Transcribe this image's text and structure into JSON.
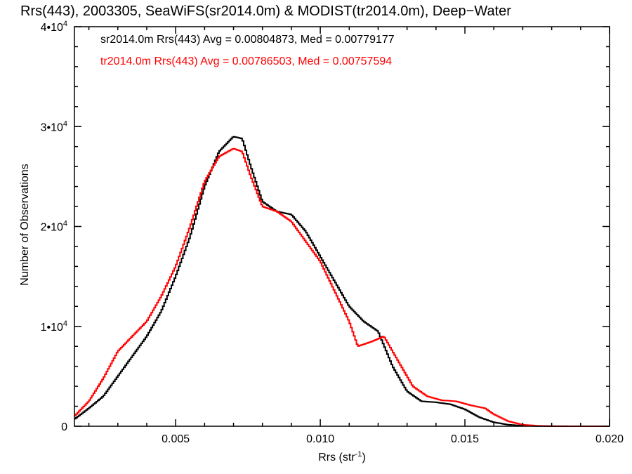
{
  "chart_data": {
    "type": "line",
    "title": "Rrs(443), 2003305, SeaWiFS(sr2014.0m) & MODIST(tr2014.0m), Deep−Water",
    "xlabel": "Rrs (str",
    "xlabel_sup": "-1",
    "xlabel_suffix": ")",
    "ylabel": "Number of Observations",
    "xlim": [
      0.0015,
      0.02
    ],
    "ylim": [
      0,
      40000
    ],
    "x_ticks": [
      {
        "value": 0.005,
        "label": "0.005"
      },
      {
        "value": 0.01,
        "label": "0.010"
      },
      {
        "value": 0.015,
        "label": "0.015"
      },
      {
        "value": 0.02,
        "label": "0.020"
      }
    ],
    "y_ticks": [
      {
        "value": 0,
        "label": "0",
        "sup": ""
      },
      {
        "value": 10000,
        "label": "1•10",
        "sup": "4"
      },
      {
        "value": 20000,
        "label": "2•10",
        "sup": "4"
      },
      {
        "value": 30000,
        "label": "3•10",
        "sup": "4"
      },
      {
        "value": 40000,
        "label": "4•10",
        "sup": "4"
      }
    ],
    "grid": false,
    "annotations": [
      {
        "text": "sr2014.0m Rrs(443) Avg = 0.00804873, Med = 0.00779177",
        "color": "#000000"
      },
      {
        "text": "tr2014.0m Rrs(443) Avg = 0.00786503, Med = 0.00757594",
        "color": "#ff0000"
      }
    ],
    "series": [
      {
        "color": "#000000",
        "points": [
          [
            0.0015,
            700
          ],
          [
            0.002,
            1800
          ],
          [
            0.0025,
            3000
          ],
          [
            0.003,
            5000
          ],
          [
            0.0035,
            7000
          ],
          [
            0.004,
            9000
          ],
          [
            0.0045,
            11500
          ],
          [
            0.005,
            15000
          ],
          [
            0.0055,
            19000
          ],
          [
            0.006,
            24000
          ],
          [
            0.0065,
            27500
          ],
          [
            0.007,
            29000
          ],
          [
            0.0073,
            28800
          ],
          [
            0.0076,
            26000
          ],
          [
            0.008,
            22500
          ],
          [
            0.0085,
            21500
          ],
          [
            0.009,
            21200
          ],
          [
            0.0095,
            19500
          ],
          [
            0.01,
            17000
          ],
          [
            0.0105,
            14500
          ],
          [
            0.011,
            12000
          ],
          [
            0.0115,
            10500
          ],
          [
            0.012,
            9500
          ],
          [
            0.0125,
            6000
          ],
          [
            0.013,
            3500
          ],
          [
            0.0135,
            2500
          ],
          [
            0.014,
            2400
          ],
          [
            0.0145,
            2200
          ],
          [
            0.015,
            1700
          ],
          [
            0.0155,
            900
          ],
          [
            0.016,
            400
          ],
          [
            0.0165,
            150
          ],
          [
            0.017,
            60
          ],
          [
            0.0175,
            20
          ],
          [
            0.018,
            5
          ],
          [
            0.019,
            0
          ],
          [
            0.02,
            0
          ]
        ]
      },
      {
        "color": "#ff0000",
        "points": [
          [
            0.0015,
            1000
          ],
          [
            0.002,
            2500
          ],
          [
            0.0025,
            4800
          ],
          [
            0.003,
            7500
          ],
          [
            0.0035,
            9000
          ],
          [
            0.004,
            10500
          ],
          [
            0.0045,
            13000
          ],
          [
            0.005,
            16000
          ],
          [
            0.0055,
            20000
          ],
          [
            0.006,
            24500
          ],
          [
            0.0065,
            27000
          ],
          [
            0.007,
            27800
          ],
          [
            0.0073,
            27500
          ],
          [
            0.0076,
            25000
          ],
          [
            0.008,
            22000
          ],
          [
            0.0085,
            21500
          ],
          [
            0.009,
            20500
          ],
          [
            0.0095,
            18500
          ],
          [
            0.01,
            16500
          ],
          [
            0.0105,
            13500
          ],
          [
            0.011,
            10500
          ],
          [
            0.0113,
            8000
          ],
          [
            0.0118,
            8500
          ],
          [
            0.0122,
            9000
          ],
          [
            0.0127,
            6500
          ],
          [
            0.0132,
            4000
          ],
          [
            0.0137,
            3000
          ],
          [
            0.0142,
            2600
          ],
          [
            0.0147,
            2500
          ],
          [
            0.0152,
            2100
          ],
          [
            0.0157,
            1800
          ],
          [
            0.016,
            1200
          ],
          [
            0.0165,
            500
          ],
          [
            0.017,
            150
          ],
          [
            0.0175,
            50
          ],
          [
            0.018,
            10
          ],
          [
            0.019,
            0
          ],
          [
            0.02,
            0
          ]
        ]
      }
    ]
  }
}
